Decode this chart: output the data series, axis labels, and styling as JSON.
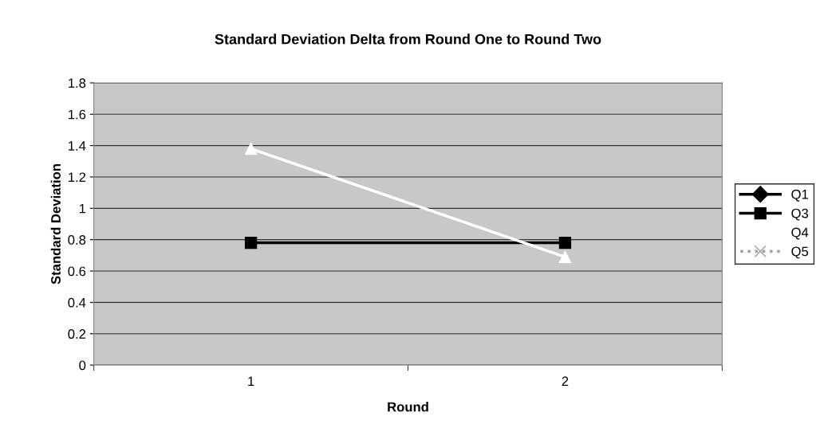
{
  "chart_data": {
    "type": "line",
    "title": "Standard Deviation Delta from Round One to Round Two",
    "xlabel": "Round",
    "ylabel": "Standard Deviation",
    "categories": [
      "1",
      "2"
    ],
    "series": [
      {
        "name": "Q1",
        "color": "#000000",
        "values": [
          null,
          null
        ],
        "marker": "diamond",
        "line_style": "solid"
      },
      {
        "name": "Q3",
        "color": "#000000",
        "values": [
          0.78,
          0.78
        ],
        "marker": "square",
        "line_style": "solid"
      },
      {
        "name": "Q4",
        "color": "#ffffff",
        "values": [
          1.38,
          0.69
        ],
        "marker": "triangle",
        "line_style": "solid"
      },
      {
        "name": "Q5",
        "color": "#a0a0a0",
        "values": [
          null,
          null
        ],
        "marker": "cross",
        "line_style": "dotted"
      }
    ],
    "ylim": [
      0,
      1.8
    ],
    "yticks": [
      0,
      0.2,
      0.4,
      0.6,
      0.8,
      1,
      1.2,
      1.4,
      1.6,
      1.8
    ],
    "grid": "y",
    "legend": "right"
  }
}
